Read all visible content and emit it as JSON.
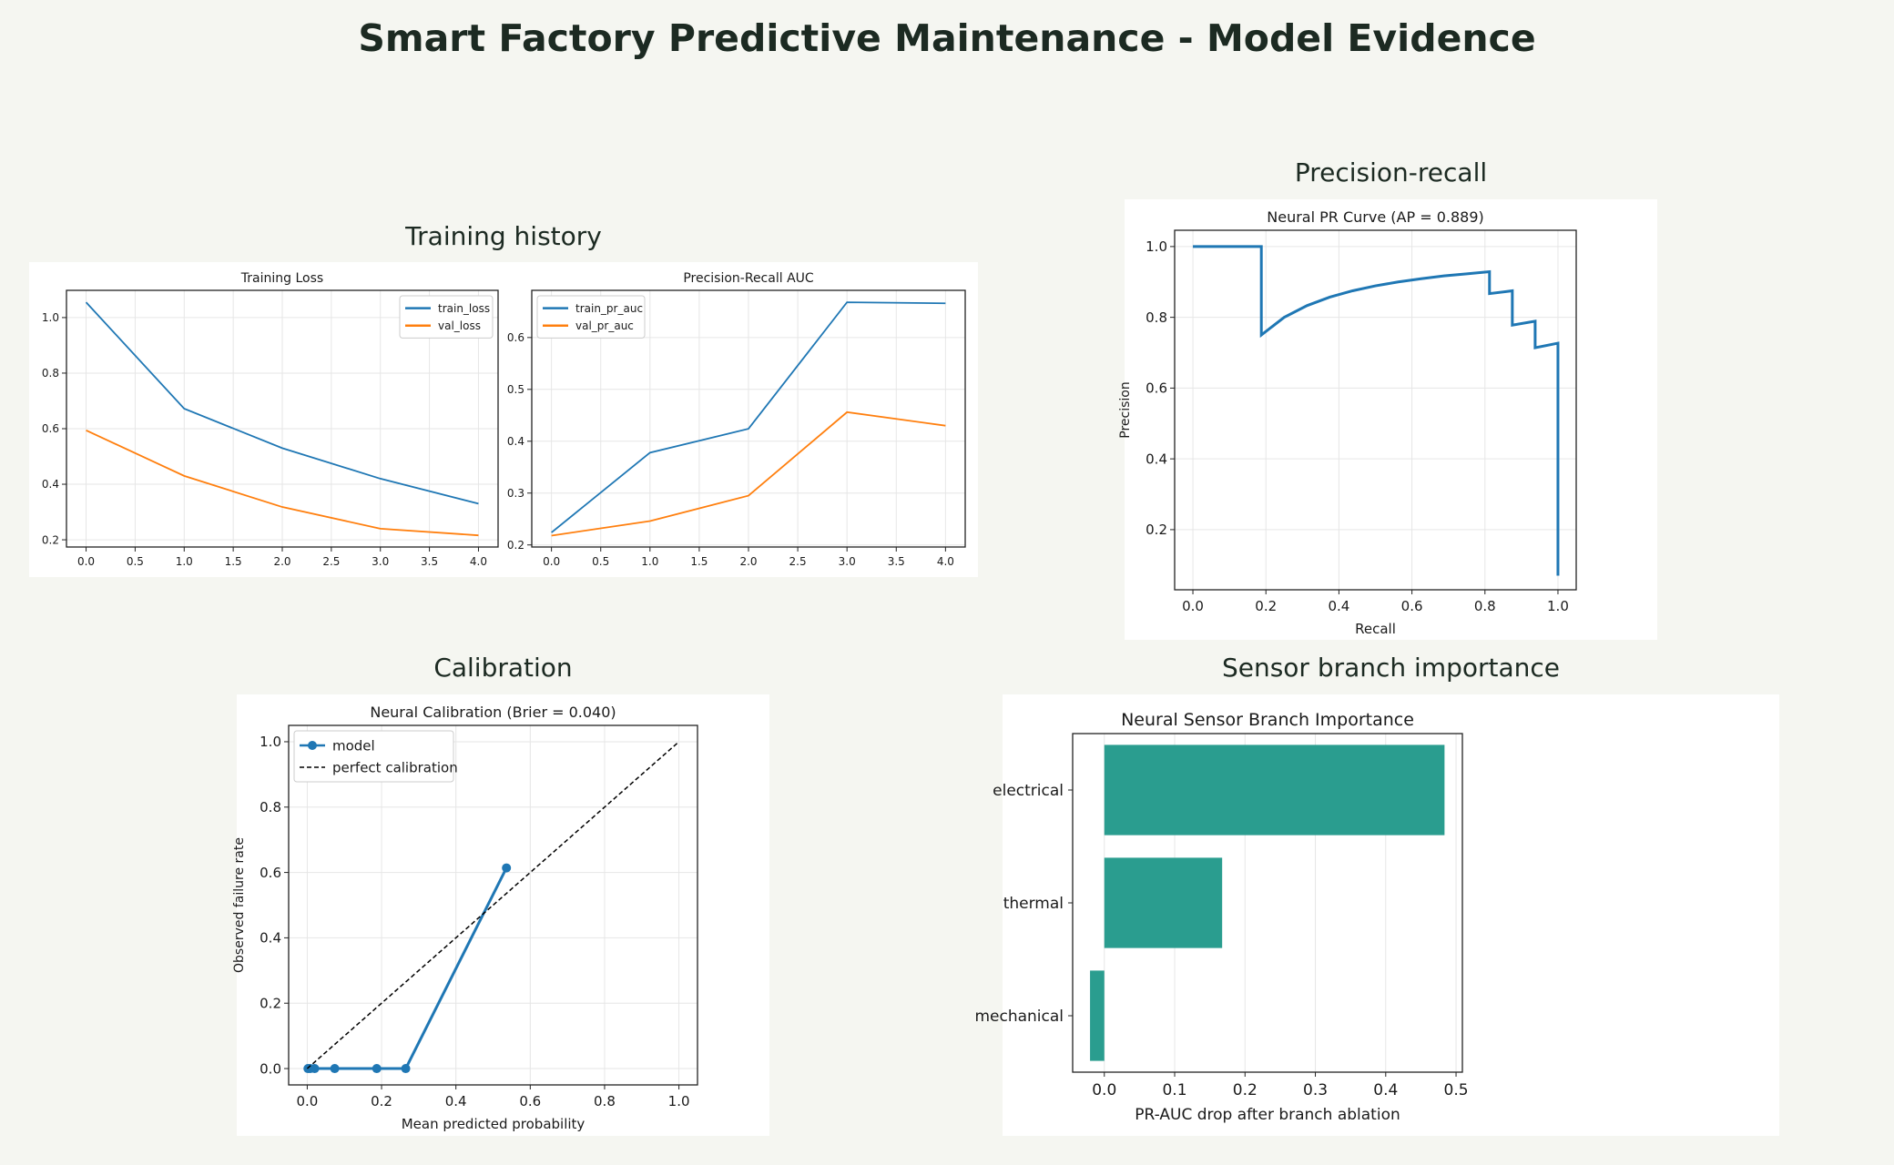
{
  "page_title": "Smart Factory Predictive Maintenance - Model Evidence",
  "sections": {
    "training": "Training history",
    "pr": "Precision-recall",
    "calibration": "Calibration",
    "sensor": "Sensor branch importance"
  },
  "chart_data": [
    {
      "id": "loss",
      "type": "line",
      "title": "Training Loss",
      "xlabel": "",
      "ylabel": "",
      "xlim": [
        -0.2,
        4.2
      ],
      "ylim": [
        0.174,
        1.098
      ],
      "xticks": [
        0,
        0.5,
        1,
        1.5,
        2,
        2.5,
        3,
        3.5,
        4
      ],
      "yticks": [
        0.2,
        0.4,
        0.6,
        0.8,
        1.0
      ],
      "grid": true,
      "legend": "top-right",
      "series": [
        {
          "name": "train_loss",
          "color": "#1f77b4",
          "x": [
            0,
            1,
            2,
            3,
            4
          ],
          "y": [
            1.055,
            0.672,
            0.53,
            0.42,
            0.33
          ]
        },
        {
          "name": "val_loss",
          "color": "#ff7f0e",
          "x": [
            0,
            1,
            2,
            3,
            4
          ],
          "y": [
            0.594,
            0.43,
            0.318,
            0.24,
            0.216
          ]
        }
      ]
    },
    {
      "id": "auc",
      "type": "line",
      "title": "Precision-Recall AUC",
      "xlabel": "",
      "ylabel": "",
      "xlim": [
        -0.2,
        4.2
      ],
      "ylim": [
        0.196,
        0.691
      ],
      "xticks": [
        0,
        0.5,
        1,
        1.5,
        2,
        2.5,
        3,
        3.5,
        4
      ],
      "yticks": [
        0.2,
        0.3,
        0.4,
        0.5,
        0.6
      ],
      "grid": true,
      "legend": "top-left",
      "series": [
        {
          "name": "train_pr_auc",
          "color": "#1f77b4",
          "x": [
            0,
            1,
            2,
            3,
            4
          ],
          "y": [
            0.224,
            0.378,
            0.424,
            0.668,
            0.666
          ]
        },
        {
          "name": "val_pr_auc",
          "color": "#ff7f0e",
          "x": [
            0,
            1,
            2,
            3,
            4
          ],
          "y": [
            0.218,
            0.246,
            0.295,
            0.456,
            0.43
          ]
        }
      ]
    },
    {
      "id": "prc",
      "type": "line",
      "title": "Neural PR Curve (AP = 0.889)",
      "xlabel": "Recall",
      "ylabel": "Precision",
      "xlim": [
        -0.05,
        1.05
      ],
      "ylim": [
        0.03,
        1.046
      ],
      "xticks": [
        0,
        0.2,
        0.4,
        0.6,
        0.8,
        1.0
      ],
      "yticks": [
        0.2,
        0.4,
        0.6,
        0.8,
        1.0
      ],
      "grid": true,
      "series": [
        {
          "name": "PR curve",
          "color": "#1f77b4",
          "x": [
            0,
            0.1875,
            0.1875,
            0.25,
            0.3125,
            0.375,
            0.4375,
            0.5,
            0.5625,
            0.625,
            0.6875,
            0.75,
            0.8125,
            0.8125,
            0.875,
            0.875,
            0.9375,
            0.9375,
            1.0,
            1.0
          ],
          "y": [
            1,
            1,
            0.75,
            0.8,
            0.833,
            0.857,
            0.875,
            0.889,
            0.9,
            0.909,
            0.917,
            0.923,
            0.929,
            0.867,
            0.875,
            0.778,
            0.789,
            0.714,
            0.727,
            0.07
          ]
        }
      ]
    },
    {
      "id": "cal",
      "type": "line",
      "title": "Neural Calibration (Brier = 0.040)",
      "xlabel": "Mean predicted probability",
      "ylabel": "Observed failure rate",
      "xlim": [
        -0.05,
        1.05
      ],
      "ylim": [
        -0.05,
        1.05
      ],
      "xticks": [
        0,
        0.2,
        0.4,
        0.6,
        0.8,
        1.0
      ],
      "yticks": [
        0,
        0.2,
        0.4,
        0.6,
        0.8,
        1.0
      ],
      "grid": true,
      "legend": "top-left",
      "series": [
        {
          "name": "model",
          "color": "#1f77b4",
          "markers": true,
          "x": [
            0.002,
            0.008,
            0.02,
            0.074,
            0.187,
            0.265,
            0.536
          ],
          "y": [
            0,
            0,
            0,
            0,
            0,
            0,
            0.614
          ]
        },
        {
          "name": "perfect calibration",
          "color": "#000000",
          "dashed": true,
          "x": [
            0,
            1
          ],
          "y": [
            0,
            1
          ]
        }
      ]
    },
    {
      "id": "sensor",
      "type": "bar",
      "orientation": "horizontal",
      "title": "Neural Sensor Branch Importance",
      "xlabel": "PR-AUC drop after branch ablation",
      "ylabel": "",
      "categories": [
        "electrical",
        "thermal",
        "mechanical"
      ],
      "values": [
        0.4836,
        0.1675,
        -0.0203
      ],
      "color": "#2a9d8f",
      "xlim": [
        -0.045,
        0.509
      ],
      "xticks": [
        0,
        0.1,
        0.2,
        0.3,
        0.4,
        0.5
      ],
      "grid": true
    }
  ]
}
